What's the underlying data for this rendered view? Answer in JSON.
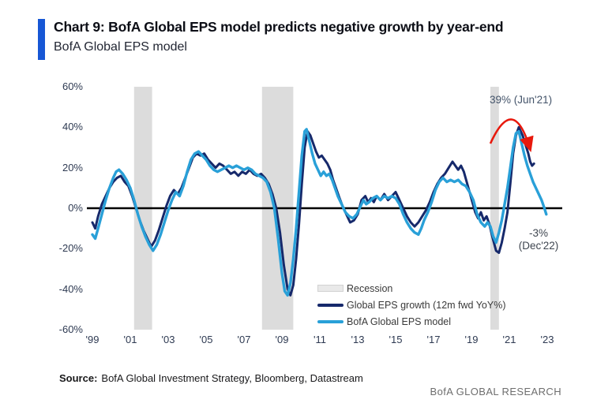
{
  "header": {
    "accent_color": "#1757d5",
    "title": "Chart 9: BofA Global EPS model predicts negative growth by year-end",
    "subtitle": "BofA Global EPS model"
  },
  "chart_data": {
    "type": "line",
    "title": "BofA Global EPS model",
    "xlabel": "",
    "ylabel": "",
    "xlim": [
      1998.7,
      2023.8
    ],
    "ylim": [
      -60,
      60
    ],
    "grid": false,
    "zero_line": true,
    "zero_line_color": "#000000",
    "recession_color": "#dcdcdc",
    "y_ticks": [
      "60%",
      "40%",
      "20%",
      "0%",
      "-20%",
      "-40%",
      "-60%"
    ],
    "y_tick_values": [
      60,
      40,
      20,
      0,
      -20,
      -40,
      -60
    ],
    "x_ticks": [
      "'99",
      "'01",
      "'03",
      "'05",
      "'07",
      "'09",
      "'11",
      "'13",
      "'15",
      "'17",
      "'19",
      "'21",
      "'23"
    ],
    "x_tick_values": [
      1999,
      2001,
      2003,
      2005,
      2007,
      2009,
      2011,
      2013,
      2015,
      2017,
      2019,
      2021,
      2023
    ],
    "recessions": [
      [
        2001.2,
        2002.15
      ],
      [
        2007.95,
        2009.6
      ],
      [
        2020.0,
        2020.45
      ]
    ],
    "series": [
      {
        "name": "Global EPS growth (12m fwd YoY%)",
        "color": "#16296b",
        "width": 3,
        "points": [
          [
            1999.0,
            -7
          ],
          [
            1999.15,
            -10
          ],
          [
            1999.3,
            -4
          ],
          [
            1999.5,
            2
          ],
          [
            1999.7,
            6
          ],
          [
            1999.9,
            10
          ],
          [
            2000.1,
            13
          ],
          [
            2000.3,
            15
          ],
          [
            2000.5,
            16
          ],
          [
            2000.7,
            13
          ],
          [
            2000.9,
            11
          ],
          [
            2001.1,
            6
          ],
          [
            2001.3,
            0
          ],
          [
            2001.5,
            -6
          ],
          [
            2001.7,
            -11
          ],
          [
            2001.9,
            -15
          ],
          [
            2002.1,
            -19
          ],
          [
            2002.3,
            -16
          ],
          [
            2002.5,
            -11
          ],
          [
            2002.7,
            -5
          ],
          [
            2002.9,
            1
          ],
          [
            2003.1,
            6
          ],
          [
            2003.3,
            9
          ],
          [
            2003.5,
            7
          ],
          [
            2003.7,
            10
          ],
          [
            2003.9,
            15
          ],
          [
            2004.1,
            20
          ],
          [
            2004.3,
            25
          ],
          [
            2004.5,
            27
          ],
          [
            2004.7,
            26
          ],
          [
            2004.9,
            27
          ],
          [
            2005.1,
            24
          ],
          [
            2005.3,
            22
          ],
          [
            2005.5,
            20
          ],
          [
            2005.7,
            22
          ],
          [
            2005.9,
            21
          ],
          [
            2006.1,
            19
          ],
          [
            2006.3,
            17
          ],
          [
            2006.5,
            18
          ],
          [
            2006.7,
            16
          ],
          [
            2006.9,
            18
          ],
          [
            2007.1,
            17
          ],
          [
            2007.3,
            19
          ],
          [
            2007.5,
            17
          ],
          [
            2007.7,
            16
          ],
          [
            2007.9,
            17
          ],
          [
            2008.1,
            15
          ],
          [
            2008.3,
            12
          ],
          [
            2008.5,
            7
          ],
          [
            2008.7,
            0
          ],
          [
            2008.9,
            -12
          ],
          [
            2009.1,
            -28
          ],
          [
            2009.3,
            -40
          ],
          [
            2009.45,
            -43
          ],
          [
            2009.6,
            -38
          ],
          [
            2009.75,
            -25
          ],
          [
            2009.9,
            -8
          ],
          [
            2010.05,
            12
          ],
          [
            2010.2,
            30
          ],
          [
            2010.35,
            38
          ],
          [
            2010.5,
            36
          ],
          [
            2010.65,
            32
          ],
          [
            2010.8,
            28
          ],
          [
            2010.95,
            25
          ],
          [
            2011.1,
            26
          ],
          [
            2011.25,
            24
          ],
          [
            2011.4,
            22
          ],
          [
            2011.55,
            19
          ],
          [
            2011.7,
            14
          ],
          [
            2011.85,
            10
          ],
          [
            2012.0,
            6
          ],
          [
            2012.2,
            1
          ],
          [
            2012.4,
            -3
          ],
          [
            2012.6,
            -7
          ],
          [
            2012.8,
            -6
          ],
          [
            2013.0,
            -3
          ],
          [
            2013.2,
            4
          ],
          [
            2013.4,
            6
          ],
          [
            2013.55,
            3
          ],
          [
            2013.7,
            5
          ],
          [
            2013.85,
            3
          ],
          [
            2014.0,
            6
          ],
          [
            2014.2,
            4
          ],
          [
            2014.4,
            7
          ],
          [
            2014.6,
            4
          ],
          [
            2014.8,
            6
          ],
          [
            2015.0,
            8
          ],
          [
            2015.2,
            4
          ],
          [
            2015.4,
            0
          ],
          [
            2015.6,
            -4
          ],
          [
            2015.8,
            -7
          ],
          [
            2016.0,
            -9
          ],
          [
            2016.2,
            -7
          ],
          [
            2016.4,
            -4
          ],
          [
            2016.6,
            -1
          ],
          [
            2016.8,
            3
          ],
          [
            2017.0,
            8
          ],
          [
            2017.2,
            12
          ],
          [
            2017.4,
            15
          ],
          [
            2017.6,
            17
          ],
          [
            2017.8,
            20
          ],
          [
            2018.0,
            23
          ],
          [
            2018.15,
            21
          ],
          [
            2018.3,
            19
          ],
          [
            2018.45,
            21
          ],
          [
            2018.6,
            18
          ],
          [
            2018.75,
            13
          ],
          [
            2018.9,
            8
          ],
          [
            2019.05,
            3
          ],
          [
            2019.2,
            -2
          ],
          [
            2019.35,
            -5
          ],
          [
            2019.5,
            -2
          ],
          [
            2019.65,
            -6
          ],
          [
            2019.8,
            -4
          ],
          [
            2019.95,
            -8
          ],
          [
            2020.1,
            -14
          ],
          [
            2020.3,
            -21
          ],
          [
            2020.45,
            -22
          ],
          [
            2020.6,
            -17
          ],
          [
            2020.75,
            -10
          ],
          [
            2020.9,
            -2
          ],
          [
            2021.05,
            12
          ],
          [
            2021.2,
            27
          ],
          [
            2021.35,
            36
          ],
          [
            2021.5,
            40
          ],
          [
            2021.6,
            38
          ],
          [
            2021.7,
            36
          ],
          [
            2021.8,
            33
          ],
          [
            2021.9,
            30
          ],
          [
            2022.0,
            27
          ],
          [
            2022.1,
            23
          ],
          [
            2022.2,
            21
          ],
          [
            2022.3,
            22
          ]
        ]
      },
      {
        "name": "BofA Global EPS model",
        "color": "#29a0d8",
        "width": 3.4,
        "points": [
          [
            1999.0,
            -13
          ],
          [
            1999.15,
            -15
          ],
          [
            1999.3,
            -10
          ],
          [
            1999.5,
            -3
          ],
          [
            1999.7,
            4
          ],
          [
            1999.9,
            10
          ],
          [
            2000.1,
            15
          ],
          [
            2000.25,
            18
          ],
          [
            2000.4,
            19
          ],
          [
            2000.6,
            17
          ],
          [
            2000.8,
            14
          ],
          [
            2001.0,
            10
          ],
          [
            2001.2,
            4
          ],
          [
            2001.4,
            -3
          ],
          [
            2001.6,
            -9
          ],
          [
            2001.8,
            -14
          ],
          [
            2002.0,
            -18
          ],
          [
            2002.2,
            -21
          ],
          [
            2002.4,
            -18
          ],
          [
            2002.6,
            -13
          ],
          [
            2002.8,
            -7
          ],
          [
            2003.0,
            -1
          ],
          [
            2003.2,
            4
          ],
          [
            2003.4,
            8
          ],
          [
            2003.6,
            6
          ],
          [
            2003.8,
            11
          ],
          [
            2004.0,
            18
          ],
          [
            2004.2,
            24
          ],
          [
            2004.4,
            27
          ],
          [
            2004.6,
            28
          ],
          [
            2004.8,
            26
          ],
          [
            2005.0,
            24
          ],
          [
            2005.2,
            21
          ],
          [
            2005.4,
            19
          ],
          [
            2005.6,
            18
          ],
          [
            2005.8,
            19
          ],
          [
            2006.0,
            20
          ],
          [
            2006.2,
            21
          ],
          [
            2006.4,
            20
          ],
          [
            2006.6,
            21
          ],
          [
            2006.8,
            20
          ],
          [
            2007.0,
            19
          ],
          [
            2007.2,
            20
          ],
          [
            2007.4,
            19
          ],
          [
            2007.6,
            17
          ],
          [
            2007.8,
            16
          ],
          [
            2008.0,
            15
          ],
          [
            2008.2,
            13
          ],
          [
            2008.4,
            8
          ],
          [
            2008.6,
            0
          ],
          [
            2008.8,
            -15
          ],
          [
            2009.0,
            -32
          ],
          [
            2009.15,
            -41
          ],
          [
            2009.3,
            -43
          ],
          [
            2009.45,
            -37
          ],
          [
            2009.6,
            -25
          ],
          [
            2009.75,
            -10
          ],
          [
            2009.9,
            8
          ],
          [
            2010.05,
            26
          ],
          [
            2010.2,
            38
          ],
          [
            2010.3,
            39
          ],
          [
            2010.45,
            33
          ],
          [
            2010.6,
            27
          ],
          [
            2010.75,
            22
          ],
          [
            2010.9,
            19
          ],
          [
            2011.05,
            16
          ],
          [
            2011.2,
            18
          ],
          [
            2011.35,
            16
          ],
          [
            2011.5,
            17
          ],
          [
            2011.65,
            14
          ],
          [
            2011.8,
            10
          ],
          [
            2011.95,
            6
          ],
          [
            2012.15,
            2
          ],
          [
            2012.35,
            -2
          ],
          [
            2012.55,
            -4
          ],
          [
            2012.75,
            -5
          ],
          [
            2012.95,
            -3
          ],
          [
            2013.15,
            1
          ],
          [
            2013.3,
            4
          ],
          [
            2013.45,
            2
          ],
          [
            2013.6,
            3
          ],
          [
            2013.8,
            5
          ],
          [
            2014.0,
            6
          ],
          [
            2014.2,
            4
          ],
          [
            2014.4,
            6
          ],
          [
            2014.6,
            5
          ],
          [
            2014.8,
            6
          ],
          [
            2015.0,
            5
          ],
          [
            2015.2,
            2
          ],
          [
            2015.4,
            -3
          ],
          [
            2015.6,
            -7
          ],
          [
            2015.8,
            -10
          ],
          [
            2016.0,
            -12
          ],
          [
            2016.2,
            -13
          ],
          [
            2016.35,
            -10
          ],
          [
            2016.5,
            -6
          ],
          [
            2016.7,
            -2
          ],
          [
            2016.9,
            3
          ],
          [
            2017.1,
            9
          ],
          [
            2017.3,
            13
          ],
          [
            2017.5,
            15
          ],
          [
            2017.7,
            13
          ],
          [
            2017.9,
            14
          ],
          [
            2018.1,
            13
          ],
          [
            2018.3,
            14
          ],
          [
            2018.5,
            12
          ],
          [
            2018.7,
            11
          ],
          [
            2018.9,
            8
          ],
          [
            2019.1,
            4
          ],
          [
            2019.3,
            -3
          ],
          [
            2019.5,
            -7
          ],
          [
            2019.7,
            -9
          ],
          [
            2019.85,
            -7
          ],
          [
            2020.0,
            -9
          ],
          [
            2020.15,
            -14
          ],
          [
            2020.3,
            -17
          ],
          [
            2020.45,
            -12
          ],
          [
            2020.6,
            -6
          ],
          [
            2020.75,
            2
          ],
          [
            2020.9,
            10
          ],
          [
            2021.05,
            20
          ],
          [
            2021.2,
            30
          ],
          [
            2021.35,
            37
          ],
          [
            2021.5,
            38
          ],
          [
            2021.65,
            32
          ],
          [
            2021.8,
            26
          ],
          [
            2021.95,
            21
          ],
          [
            2022.1,
            17
          ],
          [
            2022.25,
            13
          ],
          [
            2022.4,
            10
          ],
          [
            2022.55,
            7
          ],
          [
            2022.7,
            4
          ],
          [
            2022.85,
            0
          ],
          [
            2022.95,
            -3
          ]
        ]
      }
    ],
    "annotations": [
      {
        "id": "peak",
        "text": "39% (Jun'21)",
        "color": "#44546a"
      },
      {
        "id": "end",
        "line1": "-3%",
        "line2": "(Dec'22)",
        "color": "#3f4650"
      }
    ],
    "arrow_color": "#e8190d",
    "legend_position": "lower-center"
  },
  "legend": {
    "items": [
      {
        "label": "Recession",
        "color": "#dcdcdc"
      },
      {
        "label": "Global EPS growth (12m fwd YoY%)",
        "color": "#16296b"
      },
      {
        "label": "BofA Global EPS model",
        "color": "#29a0d8"
      }
    ]
  },
  "footer": {
    "source_label": "Source:",
    "source_text": "BofA Global Investment Strategy, Bloomberg, Datastream",
    "brand": "BofA GLOBAL RESEARCH"
  }
}
